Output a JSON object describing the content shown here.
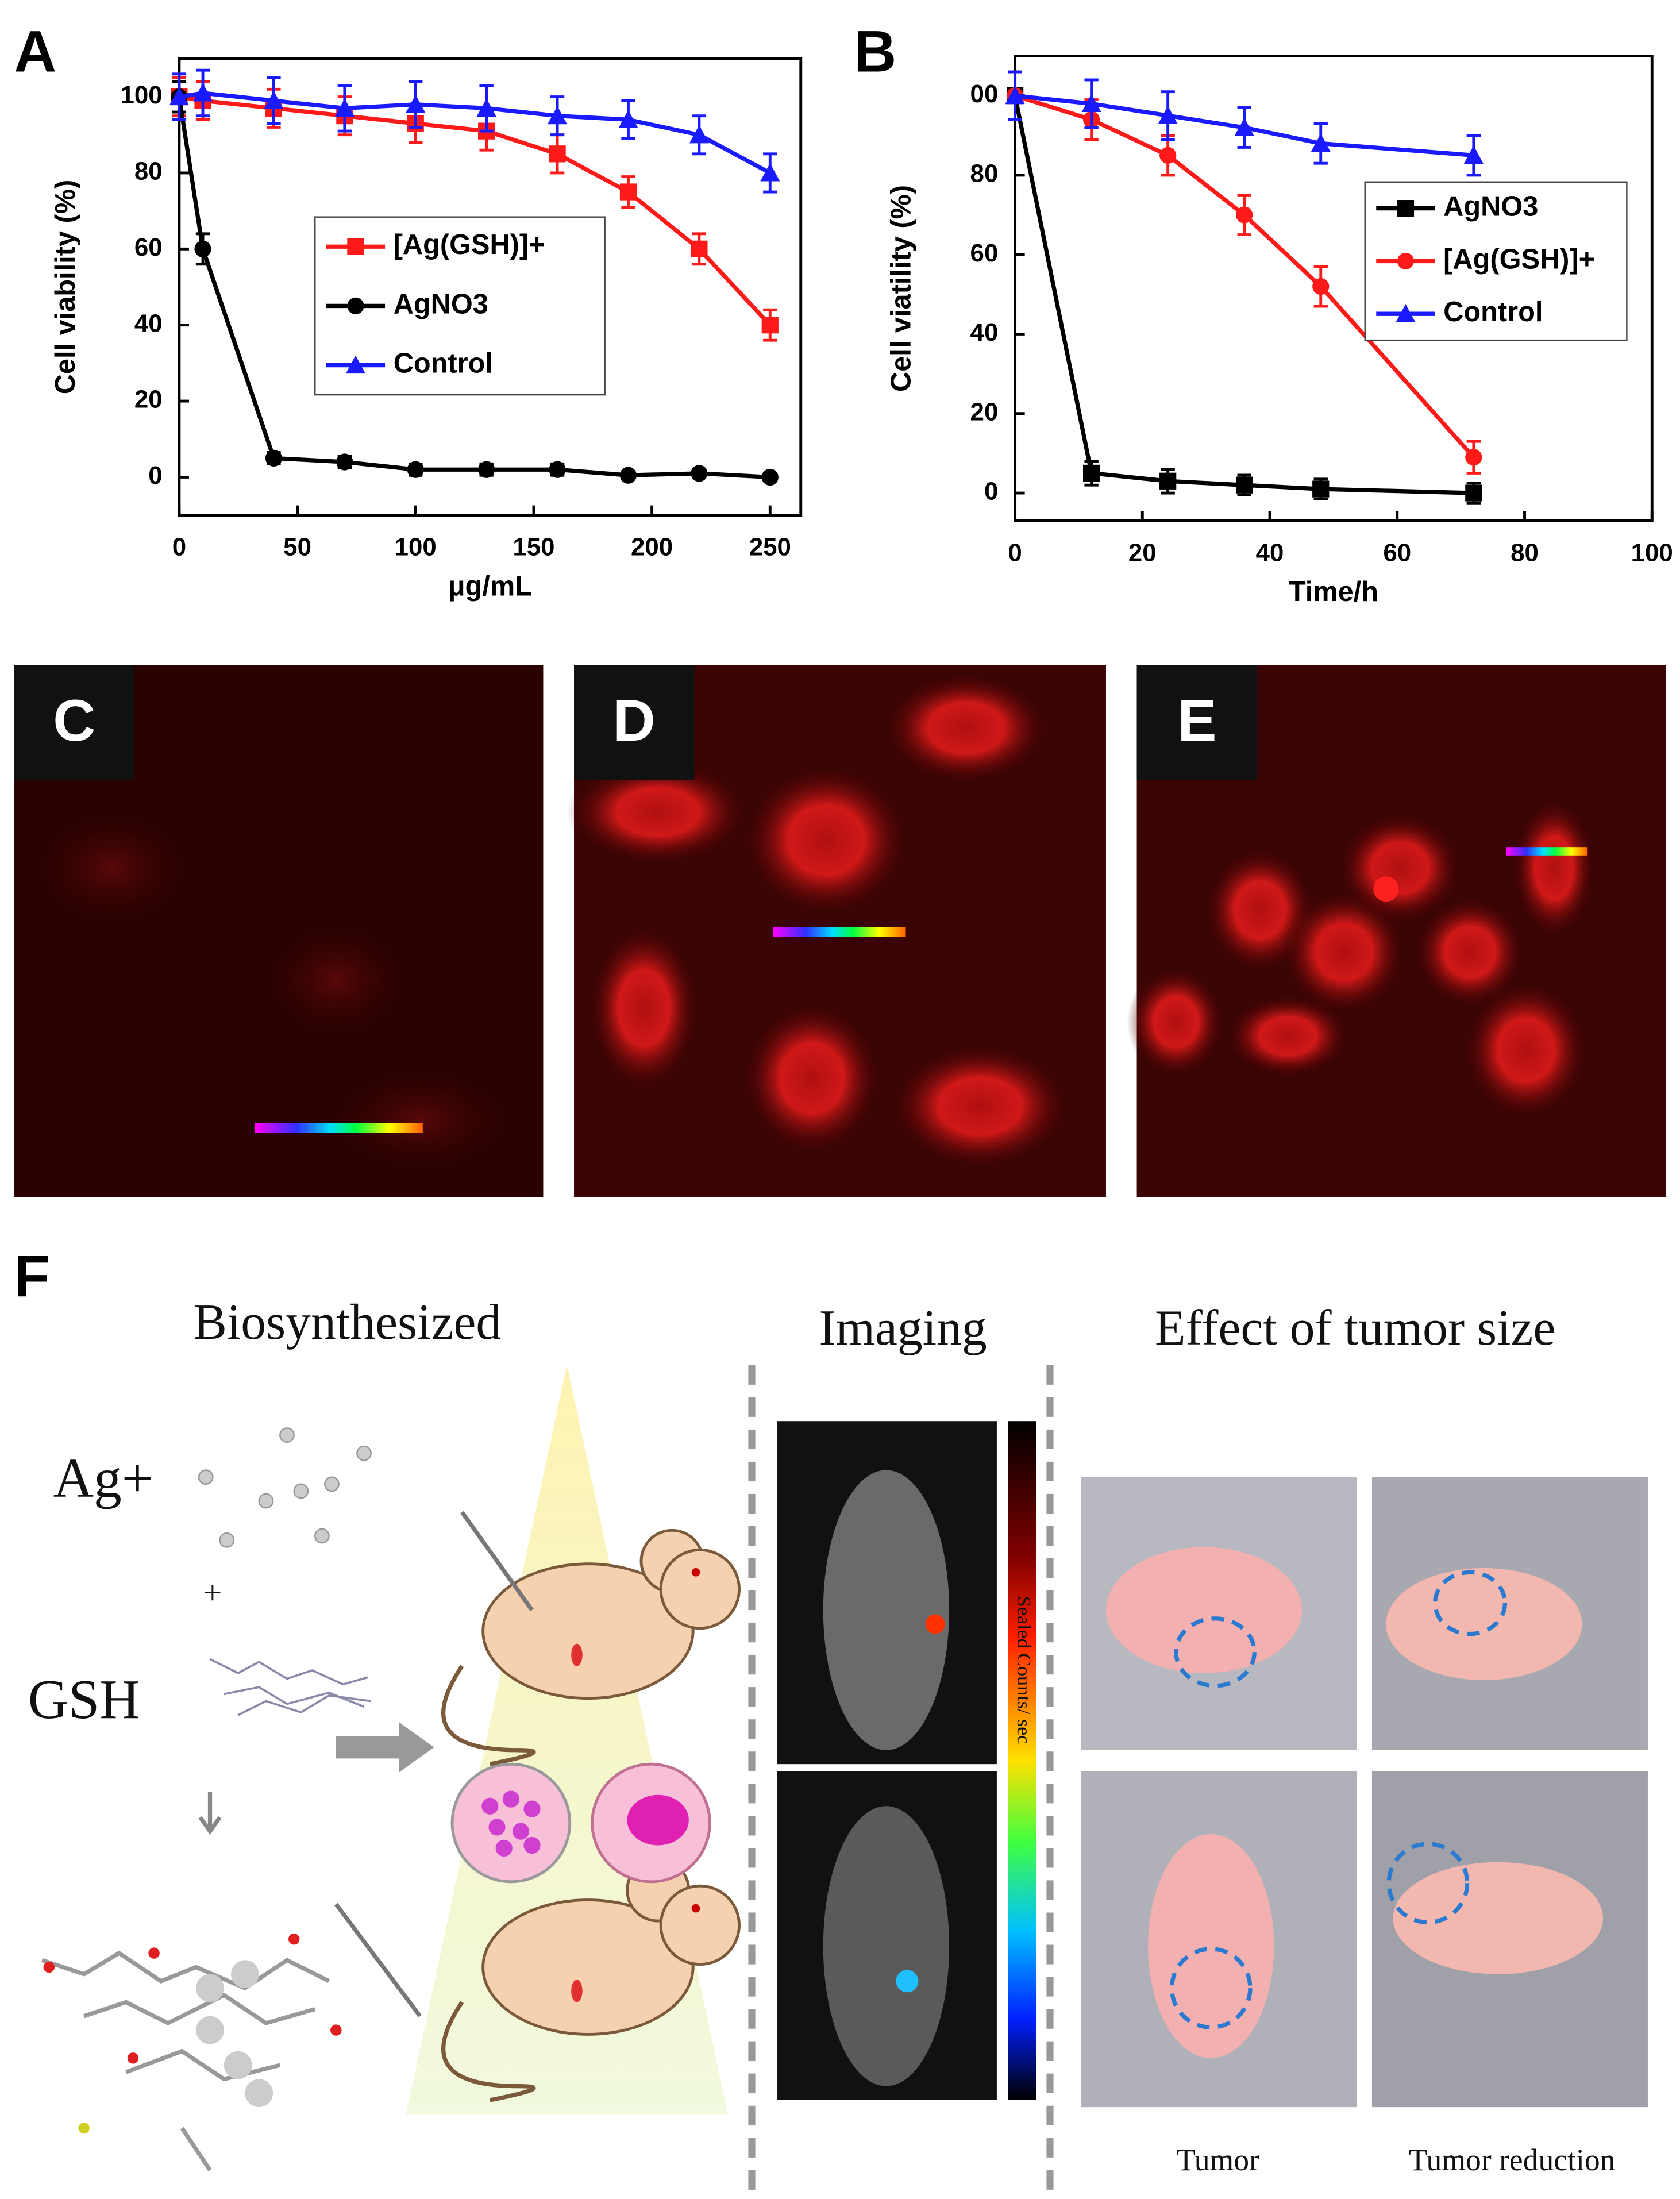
{
  "chart_data": [
    {
      "type": "line",
      "panel": "A",
      "xlabel": "μg/mL",
      "ylabel": "Cell viability (%)",
      "x": [
        0,
        10,
        40,
        70,
        100,
        130,
        160,
        190,
        220,
        250
      ],
      "xlim": [
        0,
        263
      ],
      "xticks": [
        0,
        50,
        100,
        150,
        200,
        250
      ],
      "ylim": [
        -10,
        110
      ],
      "yticks": [
        0,
        20,
        40,
        60,
        80,
        100
      ],
      "series": [
        {
          "name": "[Ag(GSH)]+",
          "color": "#ff1a1a",
          "marker": "square",
          "values": [
            100,
            99,
            97,
            95,
            93,
            91,
            85,
            75,
            60,
            40
          ],
          "errors": [
            5,
            5,
            5,
            5,
            5,
            5,
            5,
            4,
            4,
            4
          ]
        },
        {
          "name": "AgNO3",
          "color": "#000000",
          "marker": "circle",
          "values": [
            100,
            60,
            5,
            4,
            2,
            2,
            2,
            0.5,
            1,
            0
          ],
          "errors": [
            4,
            4,
            1.5,
            1.5,
            1.5,
            1.5,
            1.5,
            1,
            1,
            1
          ]
        },
        {
          "name": "Control",
          "color": "#1a1aff",
          "marker": "triangle",
          "values": [
            100,
            101,
            99,
            97,
            98,
            97,
            95,
            94,
            90,
            80
          ],
          "errors": [
            6,
            6,
            6,
            6,
            6,
            6,
            5,
            5,
            5,
            5
          ]
        }
      ]
    },
    {
      "type": "line",
      "panel": "B",
      "xlabel": "Time/h",
      "ylabel": "Cell viatility (%)",
      "x": [
        0,
        12,
        24,
        36,
        48,
        72
      ],
      "xlim": [
        0,
        100
      ],
      "xticks": [
        0,
        20,
        40,
        60,
        80,
        100
      ],
      "ylim": [
        -7,
        110
      ],
      "yticks": [
        0,
        20,
        40,
        60,
        80,
        {
          "value": 100,
          "label": "00"
        }
      ],
      "series": [
        {
          "name": "AgNO3",
          "color": "#000000",
          "marker": "square",
          "values": [
            100,
            5,
            3,
            2,
            1,
            0
          ],
          "errors": [
            6,
            3,
            3,
            2.5,
            2.5,
            2.5
          ]
        },
        {
          "name": "[Ag(GSH)]+",
          "color": "#ff1a1a",
          "marker": "circle",
          "values": [
            100,
            94,
            85,
            70,
            52,
            9
          ],
          "errors": [
            6,
            5,
            5,
            5,
            5,
            4
          ]
        },
        {
          "name": "Control",
          "color": "#1a1aff",
          "marker": "triangle",
          "values": [
            100,
            98,
            95,
            92,
            88,
            85
          ],
          "errors": [
            6,
            6,
            6,
            5,
            5,
            5
          ]
        }
      ]
    }
  ],
  "images": {
    "c": "C",
    "d": "D",
    "e": "E"
  },
  "panel_f": {
    "letter": "F",
    "biosynthesized": "Biosynthesized",
    "ag": "Ag+",
    "gsh": "GSH",
    "imaging": "Imaging",
    "colorbar": "Sealed Counts/ sec",
    "effect": "Effect of tumor size",
    "tumor": "Tumor",
    "reduction": "Tumor reduction"
  }
}
